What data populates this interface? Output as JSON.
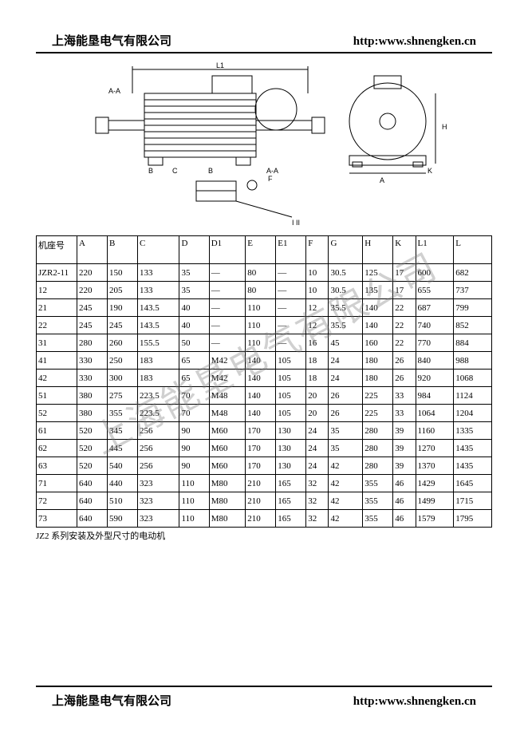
{
  "header": {
    "company": "上海能垦电气有限公司",
    "url": "http:www.shnengken.cn"
  },
  "footer": {
    "company": "上海能垦电气有限公司",
    "url": "http:www.shnengken.cn"
  },
  "watermark_text": "上海能垦电气有限公司",
  "diagram_labels": {
    "L1": "L1",
    "AA": "A-A",
    "F": "F",
    "B": "B",
    "C": "C",
    "D": "D",
    "E": "E",
    "G": "G",
    "H": "H",
    "A": "A",
    "K": "K",
    "I": "I",
    "II": "II"
  },
  "table": {
    "columns": [
      "机座号",
      "A",
      "B",
      "C",
      "D",
      "D1",
      "E",
      "E1",
      "F",
      "G",
      "H",
      "K",
      "L1",
      "L"
    ],
    "rows": [
      [
        "JZR2-11",
        "220",
        "150",
        "133",
        "35",
        "—",
        "80",
        "—",
        "10",
        "30.5",
        "125",
        "17",
        "600",
        "682"
      ],
      [
        "12",
        "220",
        "205",
        "133",
        "35",
        "—",
        "80",
        "—",
        "10",
        "30.5",
        "135",
        "17",
        "655",
        "737"
      ],
      [
        "21",
        "245",
        "190",
        "143.5",
        "40",
        "—",
        "110",
        "—",
        "12",
        "35.5",
        "140",
        "22",
        "687",
        "799"
      ],
      [
        "22",
        "245",
        "245",
        "143.5",
        "40",
        "—",
        "110",
        "—",
        "12",
        "35.5",
        "140",
        "22",
        "740",
        "852"
      ],
      [
        "31",
        "280",
        "260",
        "155.5",
        "50",
        "—",
        "110",
        "—",
        "16",
        "45",
        "160",
        "22",
        "770",
        "884"
      ],
      [
        "41",
        "330",
        "250",
        "183",
        "65",
        "M42",
        "140",
        "105",
        "18",
        "24",
        "180",
        "26",
        "840",
        "988"
      ],
      [
        "42",
        "330",
        "300",
        "183",
        "65",
        "M42",
        "140",
        "105",
        "18",
        "24",
        "180",
        "26",
        "920",
        "1068"
      ],
      [
        "51",
        "380",
        "275",
        "223.5",
        "70",
        "M48",
        "140",
        "105",
        "20",
        "26",
        "225",
        "33",
        "984",
        "1124"
      ],
      [
        "52",
        "380",
        "355",
        "223.5",
        "70",
        "M48",
        "140",
        "105",
        "20",
        "26",
        "225",
        "33",
        "1064",
        "1204"
      ],
      [
        "61",
        "520",
        "345",
        "256",
        "90",
        "M60",
        "170",
        "130",
        "24",
        "35",
        "280",
        "39",
        "1160",
        "1335"
      ],
      [
        "62",
        "520",
        "445",
        "256",
        "90",
        "M60",
        "170",
        "130",
        "24",
        "35",
        "280",
        "39",
        "1270",
        "1435"
      ],
      [
        "63",
        "520",
        "540",
        "256",
        "90",
        "M60",
        "170",
        "130",
        "24",
        "42",
        "280",
        "39",
        "1370",
        "1435"
      ],
      [
        "71",
        "640",
        "440",
        "323",
        "110",
        "M80",
        "210",
        "165",
        "32",
        "42",
        "355",
        "46",
        "1429",
        "1645"
      ],
      [
        "72",
        "640",
        "510",
        "323",
        "110",
        "M80",
        "210",
        "165",
        "32",
        "42",
        "355",
        "46",
        "1499",
        "1715"
      ],
      [
        "73",
        "640",
        "590",
        "323",
        "110",
        "M80",
        "210",
        "165",
        "32",
        "42",
        "355",
        "46",
        "1579",
        "1795"
      ]
    ],
    "caption": "JZ2 系列安装及外型尺寸的电动机"
  },
  "colors": {
    "text": "#000000",
    "border": "#000000",
    "background": "#ffffff",
    "watermark": "rgba(120,120,120,0.35)"
  }
}
